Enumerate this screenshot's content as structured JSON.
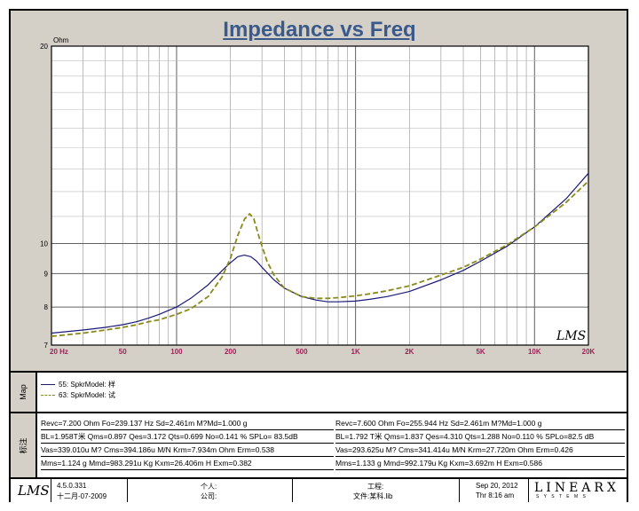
{
  "chart_data": {
    "type": "line",
    "title": "Impedance vs Freq",
    "ylabel": "Ohm",
    "xscale": "log",
    "xlim": [
      20,
      20000
    ],
    "ylim": [
      7,
      20
    ],
    "yscale": "log",
    "yticks": [
      {
        "value": 7,
        "label": "7"
      },
      {
        "value": 8,
        "label": "8"
      },
      {
        "value": 9,
        "label": "9"
      },
      {
        "value": 10,
        "label": "10"
      },
      {
        "value": 20,
        "label": "20"
      }
    ],
    "xticks": [
      {
        "value": 20,
        "label": "20 Hz"
      },
      {
        "value": 50,
        "label": "50"
      },
      {
        "value": 100,
        "label": "100"
      },
      {
        "value": 200,
        "label": "200"
      },
      {
        "value": 500,
        "label": "500"
      },
      {
        "value": 1000,
        "label": "1K"
      },
      {
        "value": 2000,
        "label": "2K"
      },
      {
        "value": 5000,
        "label": "5K"
      },
      {
        "value": 10000,
        "label": "10K"
      },
      {
        "value": 20000,
        "label": "20K"
      }
    ],
    "watermark": "LMS",
    "series": [
      {
        "name": "55: SpkrModel: 样",
        "color": "#1a1a7a",
        "style": "solid",
        "x": [
          20,
          30,
          40,
          50,
          60,
          70,
          80,
          100,
          120,
          150,
          180,
          200,
          220,
          239,
          260,
          280,
          300,
          350,
          400,
          500,
          600,
          700,
          800,
          1000,
          1200,
          1500,
          2000,
          3000,
          4000,
          5000,
          7000,
          10000,
          15000,
          20000
        ],
        "y": [
          7.3,
          7.38,
          7.45,
          7.52,
          7.6,
          7.7,
          7.8,
          8.0,
          8.25,
          8.65,
          9.1,
          9.35,
          9.55,
          9.6,
          9.55,
          9.4,
          9.2,
          8.8,
          8.55,
          8.3,
          8.2,
          8.15,
          8.15,
          8.17,
          8.22,
          8.3,
          8.45,
          8.8,
          9.1,
          9.4,
          9.9,
          10.6,
          11.7,
          12.8
        ]
      },
      {
        "name": "63: SpkrModel: 试",
        "color": "#8a8a1a",
        "style": "dashed",
        "x": [
          20,
          30,
          40,
          50,
          60,
          70,
          80,
          100,
          120,
          150,
          180,
          200,
          220,
          240,
          256,
          270,
          290,
          320,
          350,
          400,
          500,
          600,
          700,
          800,
          1000,
          1200,
          1500,
          2000,
          3000,
          4000,
          5000,
          7000,
          10000,
          15000,
          20000
        ],
        "y": [
          7.22,
          7.3,
          7.38,
          7.45,
          7.52,
          7.6,
          7.65,
          7.8,
          7.95,
          8.3,
          8.9,
          9.5,
          10.3,
          10.9,
          11.1,
          10.9,
          10.2,
          9.4,
          8.95,
          8.55,
          8.3,
          8.25,
          8.25,
          8.27,
          8.32,
          8.38,
          8.47,
          8.62,
          8.95,
          9.2,
          9.47,
          9.95,
          10.6,
          11.55,
          12.45
        ]
      }
    ]
  },
  "sidebar_labels": {
    "legend_tab": "Map",
    "params_tab": "标注"
  },
  "params": {
    "left": [
      "Revc=7.200 Ohm  Fo=239.137 Hz  Sd=2.461m M?Md=1.000 g",
      "BL=1.958T米  Qms=0.897  Qes=3.172  Qts=0.699  No=0.141 %  SPLo= 83.5dB",
      "Vas=339.010u M? Cms=394.186u M/N  Krm=7.934m Ohm  Erm=0.538",
      "Mms=1.124 g  Mmd=983.291u Kg  Kxm=26.406m H  Exm=0.382"
    ],
    "right": [
      "Revc=7.600 Ohm  Fo=255.944 Hz  Sd=2.461m M?Md=1.000 g",
      "BL=1.792 T米  Qms=1.837  Qes=4.310  Qts=1.288  No=0.110 %  SPLo=82.5 dB",
      "Vas=293.625u M? Cms=341.414u M/N  Krm=27.720m Ohm  Erm=0.426",
      "Mms=1.133 g  Mmd=992.179u Kg  Kxm=3.692m H  Exm=0.586"
    ]
  },
  "footer": {
    "logo": "LMS",
    "version": "4.5.0.331",
    "date_cn": "十二月-07-2009",
    "person_label": "个人:",
    "company_label": "公司:",
    "project_label": "工程:",
    "file_label": "文件:某科.lib",
    "print_date": "Sep 20, 2012",
    "print_time": "Thr  8:16 am",
    "brand": "LINEARX",
    "brand_sub": "S Y S T E M S"
  }
}
